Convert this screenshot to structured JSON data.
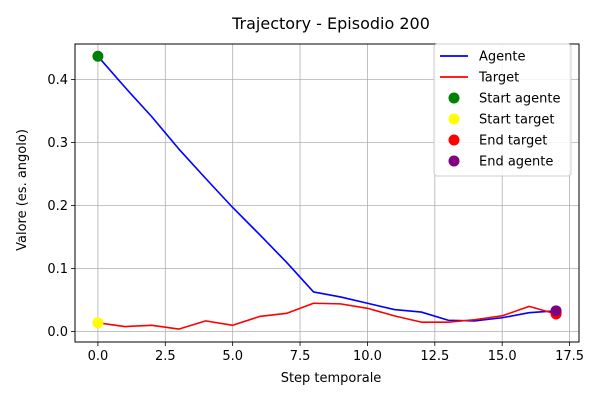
{
  "chart_data": {
    "type": "line",
    "title": "Trajectory - Episodio 200",
    "xlabel": "Step temporale",
    "ylabel": "Valore (es. angolo)",
    "xlim": [
      -0.85,
      17.85
    ],
    "ylim": [
      -0.0165,
      0.4565
    ],
    "xticks": [
      0.0,
      2.5,
      5.0,
      7.5,
      10.0,
      12.5,
      15.0,
      17.5
    ],
    "xtick_labels": [
      "0.0",
      "2.5",
      "5.0",
      "7.5",
      "10.0",
      "12.5",
      "15.0",
      "17.5"
    ],
    "yticks": [
      0.0,
      0.1,
      0.2,
      0.3,
      0.4
    ],
    "ytick_labels": [
      "0.0",
      "0.1",
      "0.2",
      "0.3",
      "0.4"
    ],
    "grid": true,
    "legend_position": "top-right",
    "series": [
      {
        "name": "Agente",
        "color": "#0000ff",
        "x": [
          0,
          1,
          2,
          3,
          4,
          5,
          6,
          7,
          8,
          9,
          10,
          11,
          12,
          13,
          14,
          15,
          16,
          17
        ],
        "y": [
          0.437,
          0.388,
          0.341,
          0.29,
          0.243,
          0.197,
          0.154,
          0.11,
          0.063,
          0.055,
          0.045,
          0.035,
          0.031,
          0.018,
          0.017,
          0.022,
          0.03,
          0.033
        ]
      },
      {
        "name": "Target",
        "color": "#ff0000",
        "x": [
          0,
          1,
          2,
          3,
          4,
          5,
          6,
          7,
          8,
          9,
          10,
          11,
          12,
          13,
          14,
          15,
          16,
          17
        ],
        "y": [
          0.014,
          0.008,
          0.01,
          0.004,
          0.017,
          0.01,
          0.024,
          0.029,
          0.045,
          0.044,
          0.037,
          0.025,
          0.015,
          0.015,
          0.019,
          0.025,
          0.04,
          0.028
        ]
      }
    ],
    "markers": [
      {
        "name": "Start agente",
        "color": "#008000",
        "x": 0,
        "y": 0.437
      },
      {
        "name": "Start target",
        "color": "#ffff00",
        "x": 0,
        "y": 0.014
      },
      {
        "name": "End target",
        "color": "#ff0000",
        "x": 17,
        "y": 0.028
      },
      {
        "name": "End agente",
        "color": "#800080",
        "x": 17,
        "y": 0.033
      }
    ]
  }
}
